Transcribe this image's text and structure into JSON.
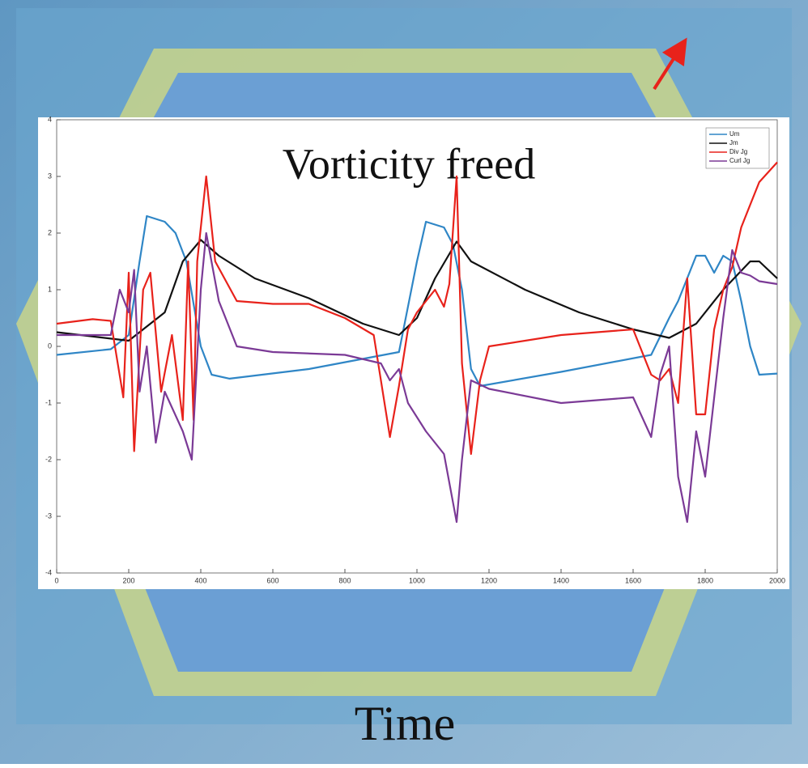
{
  "chart_data": {
    "type": "line",
    "title": "Vorticity freed",
    "x_label": "Time",
    "xlim": [
      0,
      2000
    ],
    "xticks": [
      0,
      200,
      400,
      600,
      800,
      1000,
      1200,
      1400,
      1600,
      1800,
      2000
    ],
    "ylim": [
      -4,
      4
    ],
    "yticks": [
      -4,
      -3,
      -2,
      -1,
      0,
      1,
      2,
      3,
      4
    ],
    "legend": "upper right",
    "series": [
      {
        "name": "Um",
        "color": "#2f86c6",
        "x": [
          0,
          150,
          200,
          230,
          250,
          300,
          330,
          360,
          400,
          430,
          480,
          700,
          950,
          1000,
          1025,
          1075,
          1100,
          1125,
          1150,
          1175,
          1400,
          1650,
          1700,
          1725,
          1775,
          1800,
          1825,
          1850,
          1875,
          1900,
          1925,
          1950,
          2000
        ],
        "values": [
          -0.15,
          -0.05,
          0.2,
          1.5,
          2.3,
          2.2,
          2.0,
          1.5,
          0,
          -0.5,
          -0.57,
          -0.4,
          -0.1,
          1.5,
          2.2,
          2.1,
          1.8,
          1.0,
          -0.4,
          -0.7,
          -0.45,
          -0.15,
          0.5,
          0.8,
          1.6,
          1.6,
          1.3,
          1.6,
          1.5,
          0.8,
          0,
          -0.5,
          -0.48
        ]
      },
      {
        "name": "Jm",
        "color": "#111111",
        "x": [
          0,
          200,
          300,
          350,
          400,
          450,
          550,
          700,
          850,
          950,
          1000,
          1050,
          1110,
          1150,
          1300,
          1450,
          1600,
          1700,
          1775,
          1850,
          1925,
          1950,
          2000
        ],
        "values": [
          0.25,
          0.1,
          0.6,
          1.5,
          1.88,
          1.6,
          1.2,
          0.85,
          0.4,
          0.2,
          0.5,
          1.2,
          1.85,
          1.5,
          1.0,
          0.6,
          0.3,
          0.15,
          0.4,
          1.0,
          1.5,
          1.5,
          1.2
        ]
      },
      {
        "name": "Div Jg",
        "color": "#e8221b",
        "x": [
          0,
          100,
          150,
          185,
          200,
          215,
          240,
          260,
          290,
          320,
          350,
          365,
          380,
          390,
          415,
          440,
          500,
          600,
          700,
          800,
          880,
          925,
          950,
          975,
          1000,
          1050,
          1075,
          1090,
          1110,
          1125,
          1150,
          1175,
          1200,
          1400,
          1600,
          1650,
          1675,
          1700,
          1725,
          1750,
          1775,
          1800,
          1825,
          1850,
          1875,
          1900,
          1925,
          1950,
          2000
        ],
        "values": [
          0.4,
          0.48,
          0.45,
          -0.9,
          1.3,
          -1.85,
          1.0,
          1.3,
          -0.8,
          0.2,
          -1.3,
          1.5,
          -1.3,
          1.5,
          3.0,
          1.5,
          0.8,
          0.75,
          0.75,
          0.5,
          0.2,
          -1.6,
          -0.7,
          0.3,
          0.6,
          1.0,
          0.7,
          1.1,
          3.0,
          -0.3,
          -1.9,
          -0.6,
          0,
          0.2,
          0.3,
          -0.5,
          -0.6,
          -0.4,
          -1.0,
          1.2,
          -1.2,
          -1.2,
          0.3,
          1.0,
          1.4,
          2.1,
          2.5,
          2.9,
          3.25
        ]
      },
      {
        "name": "Curl Jg",
        "color": "#7b3a96",
        "x": [
          0,
          150,
          175,
          200,
          215,
          230,
          250,
          275,
          300,
          350,
          375,
          400,
          415,
          450,
          500,
          600,
          800,
          900,
          925,
          950,
          975,
          1025,
          1075,
          1110,
          1125,
          1150,
          1200,
          1400,
          1600,
          1650,
          1675,
          1700,
          1725,
          1750,
          1775,
          1800,
          1850,
          1875,
          1900,
          1925,
          1950,
          2000
        ],
        "values": [
          0.2,
          0.2,
          1.0,
          0.6,
          1.35,
          -0.8,
          0,
          -1.7,
          -0.8,
          -1.5,
          -2.0,
          1.0,
          2.0,
          0.8,
          0,
          -0.1,
          -0.15,
          -0.3,
          -0.6,
          -0.4,
          -1.0,
          -1.5,
          -1.9,
          -3.1,
          -2.0,
          -0.6,
          -0.75,
          -1.0,
          -0.9,
          -1.6,
          -0.5,
          0,
          -2.3,
          -3.1,
          -1.5,
          -2.3,
          0.5,
          1.7,
          1.3,
          1.25,
          1.15,
          1.1
        ]
      }
    ]
  }
}
